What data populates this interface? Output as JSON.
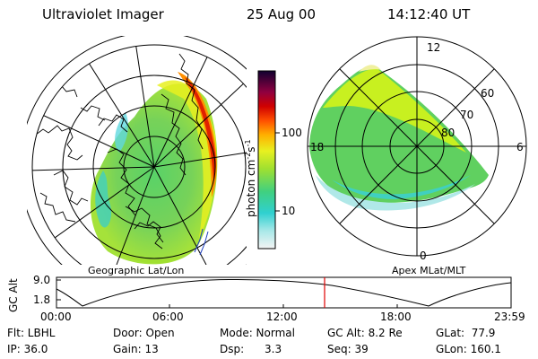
{
  "header": {
    "instrument": "Ultraviolet Imager",
    "date": "25 Aug 00",
    "time": "14:12:40 UT"
  },
  "geo_panel": {
    "caption": "Geographic Lat/Lon"
  },
  "apex_panel": {
    "caption": "Apex MLat/MLT",
    "mlt_labels": [
      "12",
      "18",
      "6",
      "0"
    ],
    "mlat_labels": [
      "60",
      "70",
      "80"
    ]
  },
  "colorbar": {
    "unit_label": "photon cm",
    "unit_sup_1": "-2",
    "unit_mid": "s",
    "unit_sup_2": "-1",
    "tick_labels": [
      "100",
      "10"
    ],
    "scale": "log",
    "colors": [
      "#f0f0f0",
      "#30d0d0",
      "#c8f020",
      "#ff8000",
      "#c00000",
      "#200040"
    ]
  },
  "altitude_plot": {
    "ylabel": "GC Alt",
    "y_ticks": [
      "9.0",
      "1.8"
    ],
    "x_ticks": [
      "00:00",
      "06:00",
      "12:00",
      "18:00",
      "23:59"
    ],
    "current_time_marker_color": "#e00000"
  },
  "status": {
    "filter": "Flt: LBHL",
    "ip": "IP: 36.0",
    "door": "Door: Open",
    "gain": "Gain: 13",
    "mode": "Mode: Normal",
    "dsp": "Dsp:      3.3",
    "gc_alt": "GC Alt: 8.2 Re",
    "seq": "Seq: 39",
    "glat": "GLat:  77.9",
    "glon": "GLon: 160.1"
  }
}
